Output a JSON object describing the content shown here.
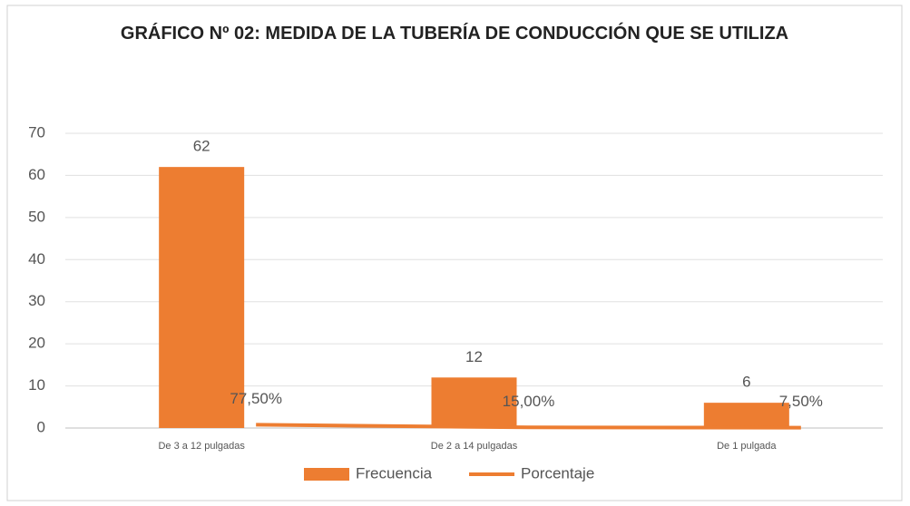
{
  "chart_data": {
    "type": "bar",
    "title": "GRÁFICO Nº 02: MEDIDA DE LA TUBERÍA DE CONDUCCIÓN QUE SE UTILIZA",
    "categories": [
      "De 3 a 12 pulgadas",
      "De 2 a 14 pulgadas",
      "De 1 pulgada"
    ],
    "series": [
      {
        "name": "Frecuencia",
        "type": "bar",
        "color": "#ed7d31",
        "values": [
          62,
          12,
          6
        ]
      },
      {
        "name": "Porcentaje",
        "type": "line",
        "color": "#ed7d31",
        "values": [
          0.775,
          0.15,
          0.075
        ],
        "value_labels": [
          "77,50%",
          "15,00%",
          "7,50%"
        ]
      }
    ],
    "ylim": [
      0,
      70
    ],
    "yticks": [
      0,
      10,
      20,
      30,
      40,
      50,
      60,
      70
    ],
    "grid": true,
    "legend": "bottom"
  }
}
